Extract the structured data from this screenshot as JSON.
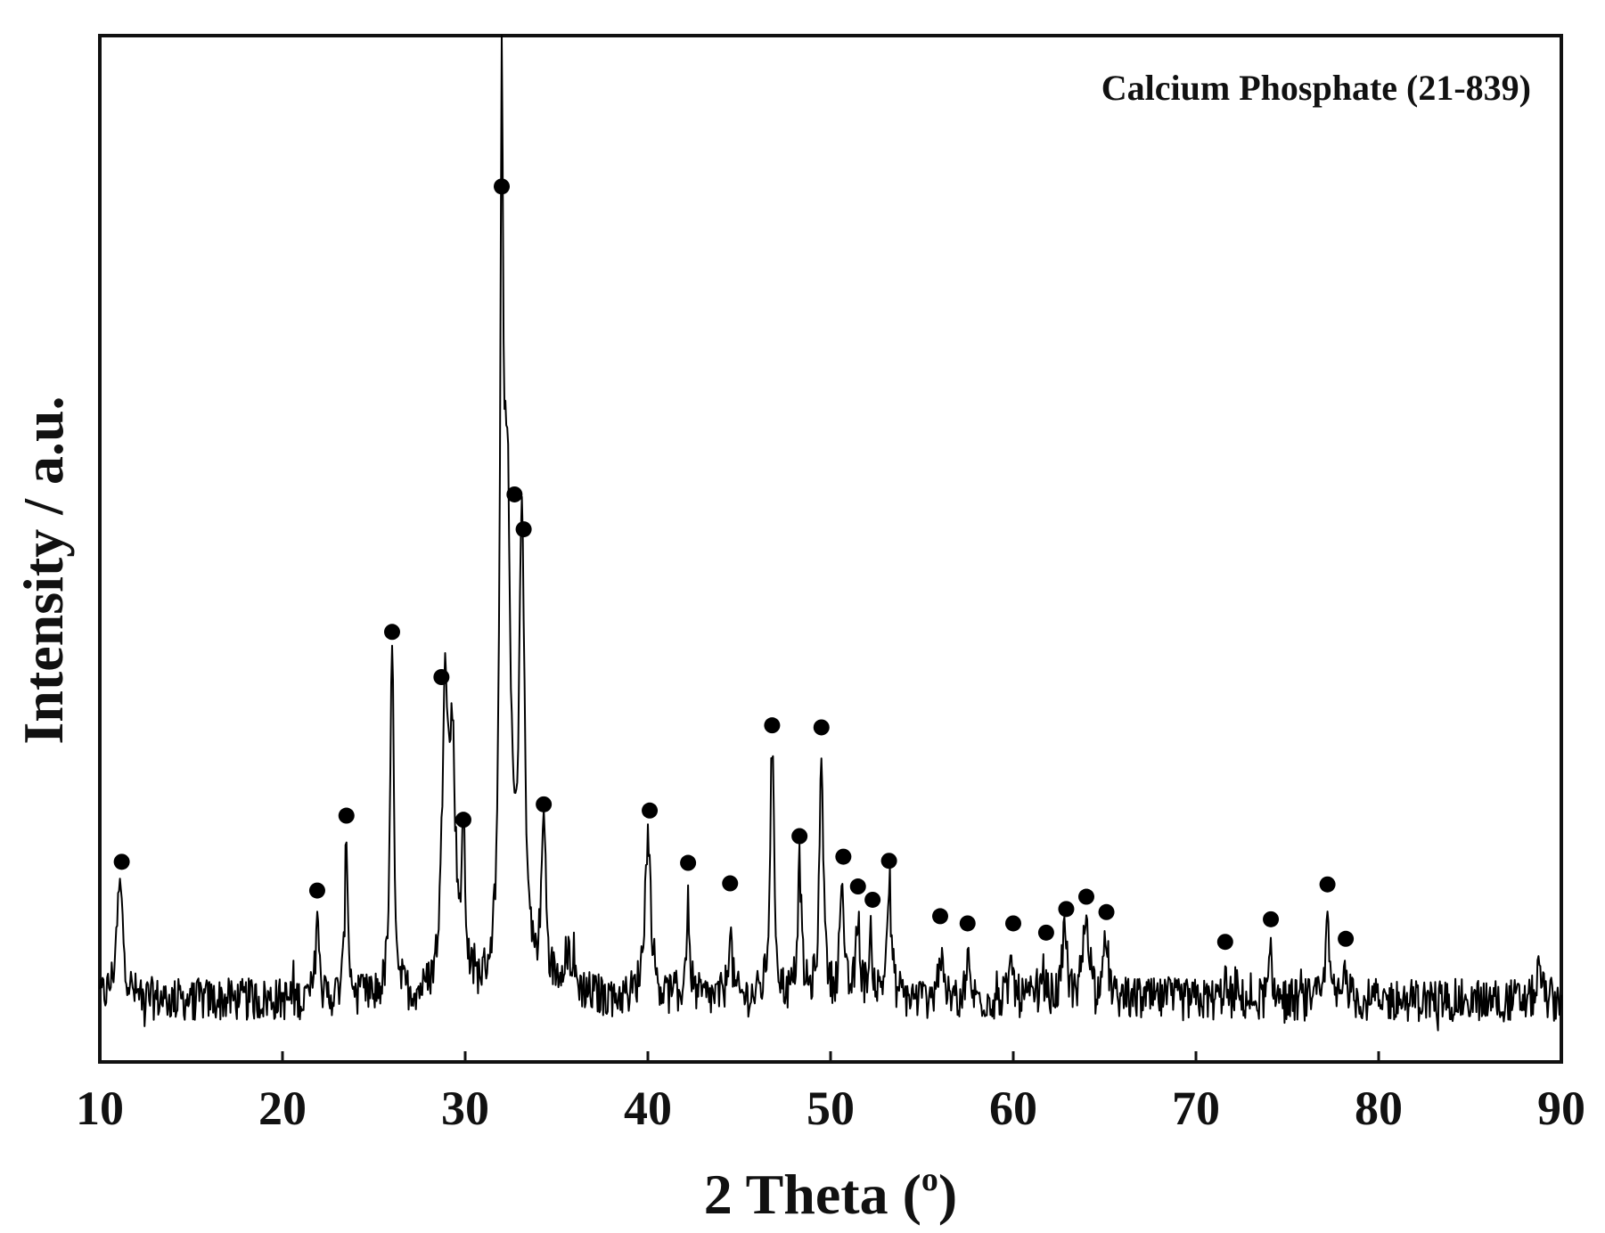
{
  "chart_data": {
    "type": "line",
    "annotation": "Calcium Phosphate (21-839)",
    "xlabel": "2 Theta (",
    "xlabel_sup": "o",
    "xlabel_close": ")",
    "ylabel": "Intensity / a.u.",
    "xlim": [
      10,
      90
    ],
    "ylim": [
      0,
      100
    ],
    "xticks": [
      10,
      20,
      30,
      40,
      50,
      60,
      70,
      80,
      90
    ],
    "yticks_shown": false,
    "grid": false,
    "legend": "none",
    "line_color": "#000000",
    "marker_color": "#000000",
    "marker_symbol": "filled-circle",
    "baseline": 6,
    "peaks": [
      {
        "x": 11.1,
        "y": 17,
        "w": 0.22
      },
      {
        "x": 21.9,
        "y": 15,
        "w": 0.1
      },
      {
        "x": 23.5,
        "y": 22,
        "w": 0.1
      },
      {
        "x": 26.0,
        "y": 40,
        "w": 0.12
      },
      {
        "x": 28.9,
        "y": 36,
        "w": 0.18
      },
      {
        "x": 29.3,
        "y": 28,
        "w": 0.2
      },
      {
        "x": 29.9,
        "y": 20,
        "w": 0.12
      },
      {
        "x": 32.0,
        "y": 84,
        "w": 0.1
      },
      {
        "x": 32.3,
        "y": 52,
        "w": 0.22
      },
      {
        "x": 33.1,
        "y": 50,
        "w": 0.18
      },
      {
        "x": 34.3,
        "y": 22,
        "w": 0.15
      },
      {
        "x": 35.6,
        "y": 10,
        "w": 0.4
      },
      {
        "x": 40.0,
        "y": 22,
        "w": 0.2
      },
      {
        "x": 42.2,
        "y": 15,
        "w": 0.12
      },
      {
        "x": 44.5,
        "y": 13,
        "w": 0.12
      },
      {
        "x": 46.8,
        "y": 31,
        "w": 0.13
      },
      {
        "x": 48.3,
        "y": 19,
        "w": 0.12
      },
      {
        "x": 49.5,
        "y": 31,
        "w": 0.12
      },
      {
        "x": 50.6,
        "y": 17,
        "w": 0.12
      },
      {
        "x": 51.5,
        "y": 14,
        "w": 0.12
      },
      {
        "x": 52.2,
        "y": 12,
        "w": 0.12
      },
      {
        "x": 53.2,
        "y": 17,
        "w": 0.14
      },
      {
        "x": 56.0,
        "y": 11,
        "w": 0.12
      },
      {
        "x": 57.5,
        "y": 10,
        "w": 0.12
      },
      {
        "x": 59.9,
        "y": 10,
        "w": 0.12
      },
      {
        "x": 61.6,
        "y": 9,
        "w": 0.12
      },
      {
        "x": 62.8,
        "y": 12,
        "w": 0.15
      },
      {
        "x": 64.0,
        "y": 14,
        "w": 0.22
      },
      {
        "x": 65.1,
        "y": 11,
        "w": 0.15
      },
      {
        "x": 71.6,
        "y": 8,
        "w": 0.12
      },
      {
        "x": 74.1,
        "y": 10,
        "w": 0.12
      },
      {
        "x": 77.2,
        "y": 14,
        "w": 0.1
      },
      {
        "x": 78.2,
        "y": 10,
        "w": 0.1
      },
      {
        "x": 88.8,
        "y": 10,
        "w": 0.12
      }
    ],
    "markers": [
      {
        "x": 11.2,
        "y": 19.5
      },
      {
        "x": 21.9,
        "y": 16.7
      },
      {
        "x": 23.5,
        "y": 24.0
      },
      {
        "x": 26.0,
        "y": 41.9
      },
      {
        "x": 28.7,
        "y": 37.5
      },
      {
        "x": 29.9,
        "y": 23.6
      },
      {
        "x": 32.0,
        "y": 85.3
      },
      {
        "x": 32.7,
        "y": 55.3
      },
      {
        "x": 33.2,
        "y": 51.9
      },
      {
        "x": 34.3,
        "y": 25.1
      },
      {
        "x": 40.1,
        "y": 24.5
      },
      {
        "x": 42.2,
        "y": 19.4
      },
      {
        "x": 44.5,
        "y": 17.4
      },
      {
        "x": 46.8,
        "y": 32.8
      },
      {
        "x": 48.3,
        "y": 22.0
      },
      {
        "x": 49.5,
        "y": 32.6
      },
      {
        "x": 50.7,
        "y": 20.0
      },
      {
        "x": 51.5,
        "y": 17.1
      },
      {
        "x": 52.3,
        "y": 15.8
      },
      {
        "x": 53.2,
        "y": 19.6
      },
      {
        "x": 56.0,
        "y": 14.2
      },
      {
        "x": 57.5,
        "y": 13.5
      },
      {
        "x": 60.0,
        "y": 13.5
      },
      {
        "x": 61.8,
        "y": 12.6
      },
      {
        "x": 62.9,
        "y": 14.9
      },
      {
        "x": 64.0,
        "y": 16.1
      },
      {
        "x": 65.1,
        "y": 14.6
      },
      {
        "x": 71.6,
        "y": 11.7
      },
      {
        "x": 74.1,
        "y": 13.9
      },
      {
        "x": 77.2,
        "y": 17.3
      },
      {
        "x": 78.2,
        "y": 12.0
      }
    ]
  }
}
